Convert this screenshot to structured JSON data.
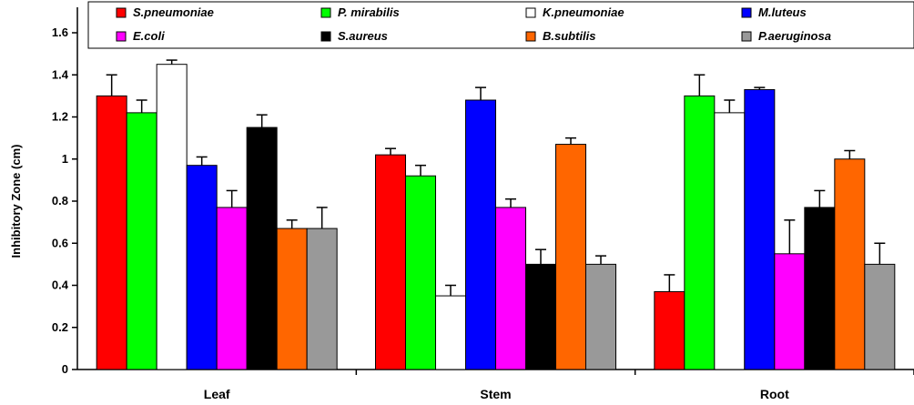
{
  "chart_data": {
    "type": "bar",
    "ylabel": "Inhibitory Zone (cm)",
    "xlabel": "",
    "ylim": [
      0,
      1.6
    ],
    "yticks": [
      "0",
      "0.2",
      "0.4",
      "0.6",
      "0.8",
      "1",
      "1.2",
      "1.4",
      "1.6"
    ],
    "categories": [
      "Leaf",
      "Stem",
      "Root"
    ],
    "legend_position": "top",
    "series": [
      {
        "name": "S.pneumoniae",
        "color": "#ff0000",
        "values": [
          1.3,
          1.02,
          0.37
        ],
        "errors": [
          0.1,
          0.03,
          0.08
        ]
      },
      {
        "name": "P. mirabilis",
        "color": "#00ff00",
        "values": [
          1.22,
          0.92,
          1.3
        ],
        "errors": [
          0.06,
          0.05,
          0.1
        ]
      },
      {
        "name": "K.pneumoniae",
        "color": "#ffffff",
        "values": [
          1.45,
          0.35,
          1.22
        ],
        "errors": [
          0.02,
          0.05,
          0.06
        ]
      },
      {
        "name": "M.luteus",
        "color": "#0000ff",
        "values": [
          0.97,
          1.28,
          1.33
        ],
        "errors": [
          0.04,
          0.06,
          0.01
        ]
      },
      {
        "name": "E.coli",
        "color": "#ff00ff",
        "values": [
          0.77,
          0.77,
          0.55
        ],
        "errors": [
          0.08,
          0.04,
          0.16
        ]
      },
      {
        "name": "S.aureus",
        "color": "#000000",
        "values": [
          1.15,
          0.5,
          0.77
        ],
        "errors": [
          0.06,
          0.07,
          0.08
        ]
      },
      {
        "name": "B.subtilis",
        "color": "#ff6600",
        "values": [
          0.67,
          1.07,
          1.0
        ],
        "errors": [
          0.04,
          0.03,
          0.04
        ]
      },
      {
        "name": "P.aeruginosa",
        "color": "#999999",
        "values": [
          0.67,
          0.5,
          0.5
        ],
        "errors": [
          0.1,
          0.04,
          0.1
        ]
      }
    ]
  }
}
